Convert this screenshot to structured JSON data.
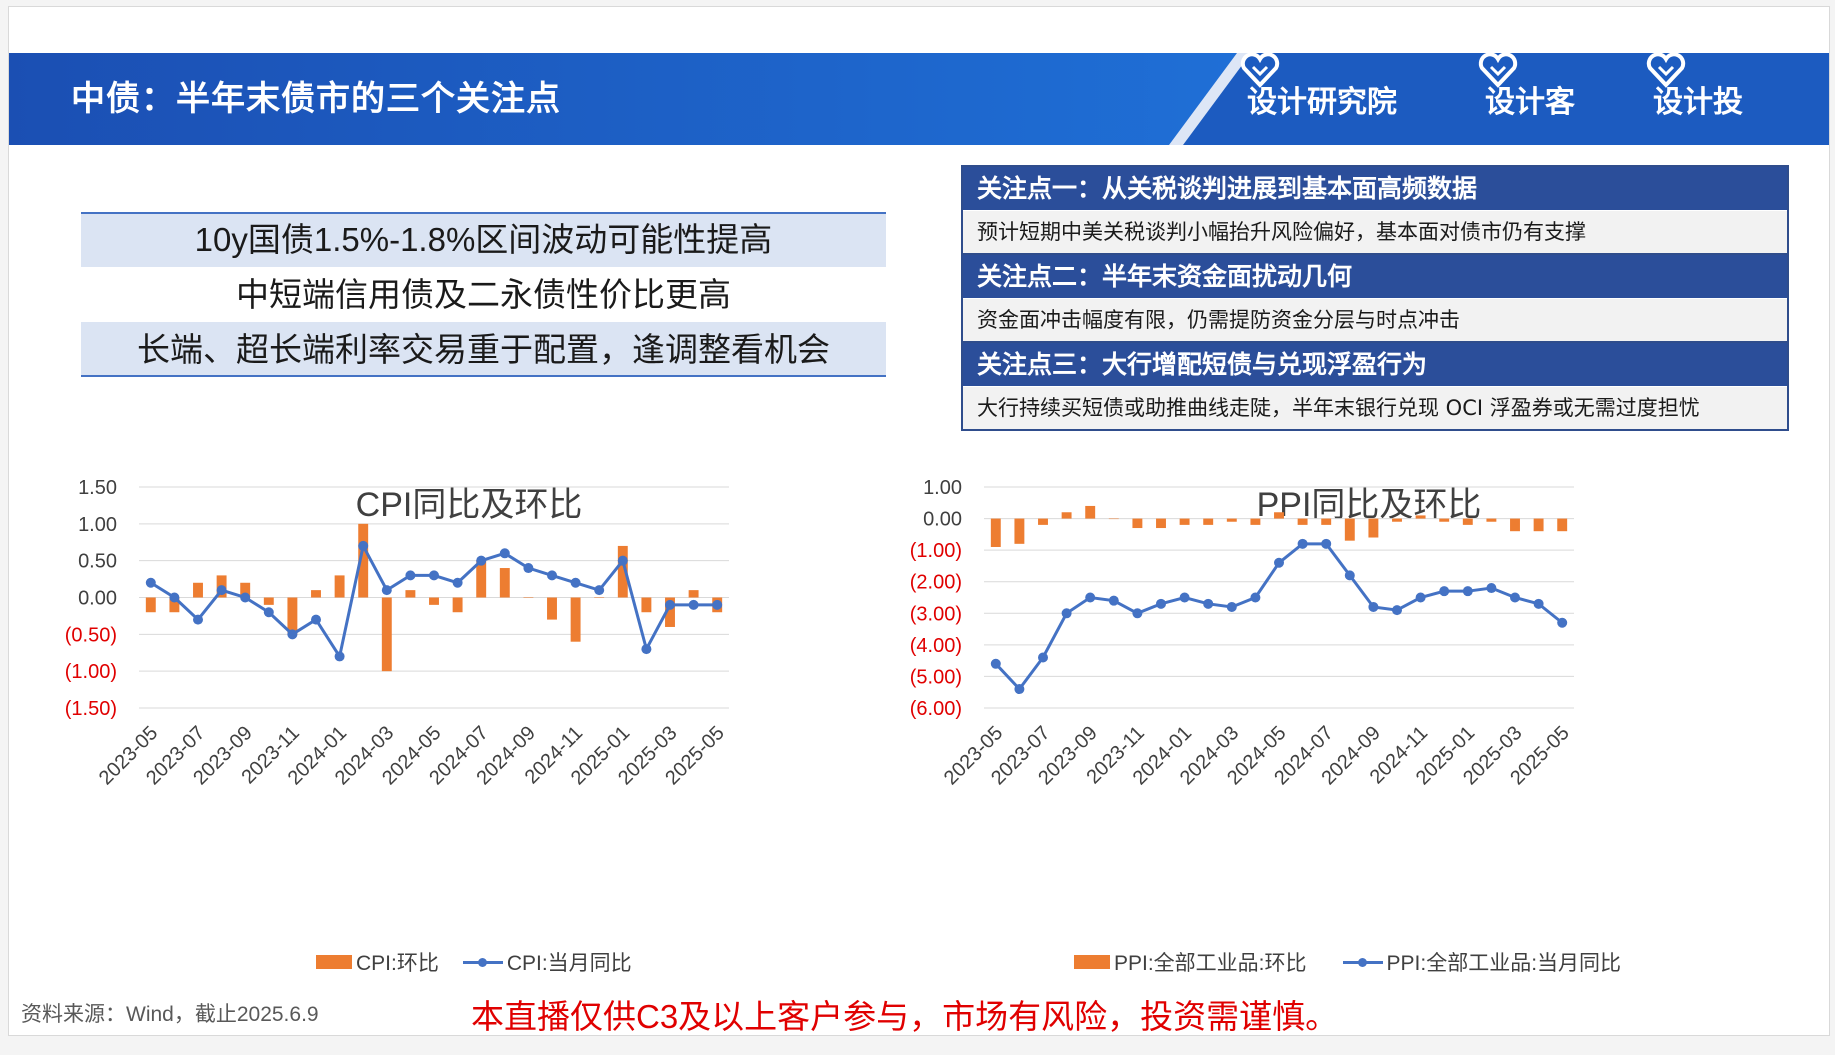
{
  "banner": {
    "title": "中债：半年末债市的三个关注点",
    "brands": [
      "设计研究院",
      "设计客",
      "设计投"
    ]
  },
  "summary": [
    "10y国债1.5%-1.8%区间波动可能性提高",
    "中短端信用债及二永债性价比更高",
    "长端、超长端利率交易重于配置，逢调整看机会"
  ],
  "focus_points": [
    {
      "title": "关注点一：从关税谈判进展到基本面高频数据",
      "body": "预计短期中美关税谈判小幅抬升风险偏好，基本面对债市仍有支撑"
    },
    {
      "title": "关注点二：半年末资金面扰动几何",
      "body": "资金面冲击幅度有限，仍需提防资金分层与时点冲击"
    },
    {
      "title": "关注点三：大行增配短债与兑现浮盈行为",
      "body": "大行持续买短债或助推曲线走陡，半年末银行兑现 OCI 浮盈券或无需过度担忧"
    }
  ],
  "colors": {
    "bar": "#ed7d31",
    "line": "#4472c4",
    "negative_label": "#e00000",
    "banner": "#1f5fc4",
    "header": "#2b4e9a"
  },
  "chart_data": [
    {
      "type": "bar+line",
      "title": "CPI同比及环比",
      "x": [
        "2023-05",
        "2023-06",
        "2023-07",
        "2023-08",
        "2023-09",
        "2023-10",
        "2023-11",
        "2023-12",
        "2024-01",
        "2024-02",
        "2024-03",
        "2024-04",
        "2024-05",
        "2024-06",
        "2024-07",
        "2024-08",
        "2024-09",
        "2024-10",
        "2024-11",
        "2024-12",
        "2025-01",
        "2025-02",
        "2025-03",
        "2025-04",
        "2025-05"
      ],
      "x_tick_labels": [
        "2023-05",
        "2023-07",
        "2023-09",
        "2023-11",
        "2024-01",
        "2024-03",
        "2024-05",
        "2024-07",
        "2024-09",
        "2024-11",
        "2025-01",
        "2025-03",
        "2025-05"
      ],
      "y_ticks": [
        1.5,
        1.0,
        0.5,
        0.0,
        -0.5,
        -1.0,
        -1.5
      ],
      "y_tick_labels": [
        "1.50",
        "1.00",
        "0.50",
        "0.00",
        "(0.50)",
        "(1.00)",
        "(1.50)"
      ],
      "ylim": [
        -1.5,
        1.5
      ],
      "grid": true,
      "legend_position": "bottom",
      "series": [
        {
          "name": "CPI:环比",
          "kind": "bar",
          "values": [
            -0.2,
            -0.2,
            0.2,
            0.3,
            0.2,
            -0.1,
            -0.5,
            0.1,
            0.3,
            1.0,
            -1.0,
            0.1,
            -0.1,
            -0.2,
            0.5,
            0.4,
            0.0,
            -0.3,
            -0.6,
            0.0,
            0.7,
            -0.2,
            -0.4,
            0.1,
            -0.2
          ]
        },
        {
          "name": "CPI:当月同比",
          "kind": "line",
          "values": [
            0.2,
            0.0,
            -0.3,
            0.1,
            0.0,
            -0.2,
            -0.5,
            -0.3,
            -0.8,
            0.7,
            0.1,
            0.3,
            0.3,
            0.2,
            0.5,
            0.6,
            0.4,
            0.3,
            0.2,
            0.1,
            0.5,
            -0.7,
            -0.1,
            -0.1,
            -0.1
          ]
        }
      ]
    },
    {
      "type": "bar+line",
      "title": "PPI同比及环比",
      "x": [
        "2023-05",
        "2023-06",
        "2023-07",
        "2023-08",
        "2023-09",
        "2023-10",
        "2023-11",
        "2023-12",
        "2024-01",
        "2024-02",
        "2024-03",
        "2024-04",
        "2024-05",
        "2024-06",
        "2024-07",
        "2024-08",
        "2024-09",
        "2024-10",
        "2024-11",
        "2024-12",
        "2025-01",
        "2025-02",
        "2025-03",
        "2025-04",
        "2025-05"
      ],
      "x_tick_labels": [
        "2023-05",
        "2023-07",
        "2023-09",
        "2023-11",
        "2024-01",
        "2024-03",
        "2024-05",
        "2024-07",
        "2024-09",
        "2024-11",
        "2025-01",
        "2025-03",
        "2025-05"
      ],
      "y_ticks": [
        1.0,
        0.0,
        -1.0,
        -2.0,
        -3.0,
        -4.0,
        -5.0,
        -6.0
      ],
      "y_tick_labels": [
        "1.00",
        "0.00",
        "(1.00)",
        "(2.00)",
        "(3.00)",
        "(4.00)",
        "(5.00)",
        "(6.00)"
      ],
      "ylim": [
        -6.0,
        1.0
      ],
      "grid": true,
      "legend_position": "bottom",
      "series": [
        {
          "name": "PPI:全部工业品:环比",
          "kind": "bar",
          "values": [
            -0.9,
            -0.8,
            -0.2,
            0.2,
            0.4,
            0.0,
            -0.3,
            -0.3,
            -0.2,
            -0.2,
            -0.1,
            -0.2,
            0.2,
            -0.2,
            -0.2,
            -0.7,
            -0.6,
            -0.1,
            0.1,
            -0.1,
            -0.2,
            -0.1,
            -0.4,
            -0.4,
            -0.4
          ]
        },
        {
          "name": "PPI:全部工业品:当月同比",
          "kind": "line",
          "values": [
            -4.6,
            -5.4,
            -4.4,
            -3.0,
            -2.5,
            -2.6,
            -3.0,
            -2.7,
            -2.5,
            -2.7,
            -2.8,
            -2.5,
            -1.4,
            -0.8,
            -0.8,
            -1.8,
            -2.8,
            -2.9,
            -2.5,
            -2.3,
            -2.3,
            -2.2,
            -2.5,
            -2.7,
            -3.3
          ]
        }
      ]
    }
  ],
  "footer": {
    "source": "资料来源：Wind，截止2025.6.9",
    "disclaimer": "本直播仅供C3及以上客户参与，市场有风险，投资需谨慎。"
  }
}
